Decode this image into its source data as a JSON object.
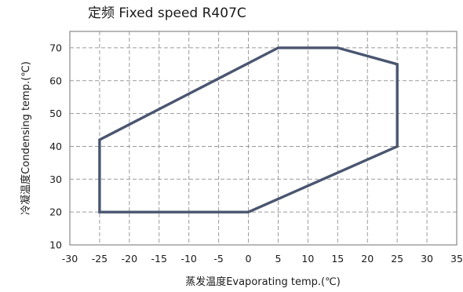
{
  "chart_data": {
    "type": "line",
    "title": "定频 Fixed speed   R407C",
    "xlabel": "蒸发温度Evaporating temp.(℃)",
    "ylabel": "冷凝温度Condensing temp.(℃)",
    "xlim": [
      -30,
      35
    ],
    "ylim": [
      10,
      75
    ],
    "x_ticks": [
      -30,
      -25,
      -20,
      -15,
      -10,
      -5,
      0,
      5,
      10,
      15,
      20,
      25,
      30,
      35
    ],
    "y_ticks": [
      10,
      20,
      30,
      40,
      50,
      60,
      70
    ],
    "grid": true,
    "line_color": "#4a5670",
    "series": [
      {
        "points": [
          {
            "x": -25,
            "y": 20
          },
          {
            "x": -25,
            "y": 42
          },
          {
            "x": 5,
            "y": 70
          },
          {
            "x": 15,
            "y": 70
          },
          {
            "x": 25,
            "y": 65
          },
          {
            "x": 25,
            "y": 40
          },
          {
            "x": 0,
            "y": 20
          },
          {
            "x": -25,
            "y": 20
          }
        ]
      }
    ]
  }
}
